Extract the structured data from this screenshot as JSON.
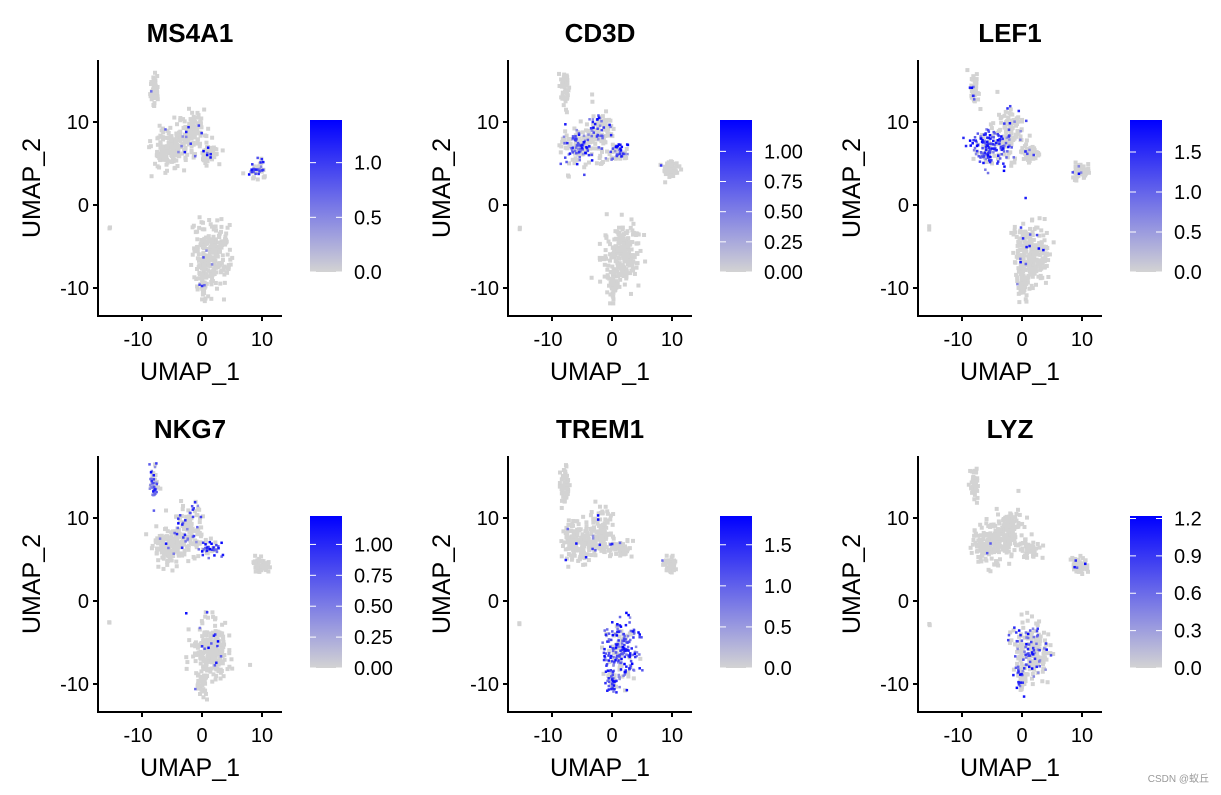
{
  "watermark": "CSDN @蚁丘",
  "chart_data": {
    "type": "scatter",
    "xlabel": "UMAP_1",
    "ylabel": "UMAP_2",
    "xlim": [
      -16.5,
      13.5
    ],
    "ylim": [
      -13.5,
      17.5
    ],
    "xticks": [
      -10,
      0,
      10
    ],
    "yticks": [
      -10,
      0,
      10
    ],
    "low_color": "#D3D3D3",
    "high_color": "#0000FF",
    "clusters": [
      {
        "x": -8,
        "y": 14,
        "sx": 0.35,
        "sy": 1.1,
        "n": 50
      },
      {
        "x": -5.5,
        "y": 7,
        "sx": 1.4,
        "sy": 1.2,
        "n": 160
      },
      {
        "x": -2,
        "y": 8.7,
        "sx": 1.1,
        "sy": 1.4,
        "n": 110
      },
      {
        "x": 1.2,
        "y": 6.3,
        "sx": 0.9,
        "sy": 0.5,
        "n": 50
      },
      {
        "x": 9.6,
        "y": 4.3,
        "sx": 0.7,
        "sy": 0.5,
        "n": 50
      },
      {
        "x": 1.5,
        "y": -6,
        "sx": 1.5,
        "sy": 1.8,
        "n": 230
      },
      {
        "x": 0,
        "y": -9.5,
        "sx": 0.45,
        "sy": 0.9,
        "n": 40
      },
      {
        "x": -15.5,
        "y": -2.7,
        "sx": 0.05,
        "sy": 0.1,
        "n": 2
      }
    ],
    "panels": [
      {
        "title": "MS4A1",
        "max": 1.39,
        "legend_ticks": [
          "0.0",
          "0.5",
          "1.0"
        ],
        "tick_values": [
          0,
          0.5,
          1.0
        ],
        "expr_fraction": [
          0.05,
          0.02,
          0.05,
          0.05,
          0.6,
          0.02,
          0.02,
          0
        ]
      },
      {
        "title": "CD3D",
        "max": 1.26,
        "legend_ticks": [
          "0.00",
          "0.25",
          "0.50",
          "0.75",
          "1.00"
        ],
        "tick_values": [
          0,
          0.25,
          0.5,
          0.75,
          1.0
        ],
        "expr_fraction": [
          0.05,
          0.45,
          0.3,
          0.5,
          0.05,
          0.01,
          0.01,
          0
        ]
      },
      {
        "title": "LEF1",
        "max": 1.9,
        "legend_ticks": [
          "0.0",
          "0.5",
          "1.0",
          "1.5"
        ],
        "tick_values": [
          0,
          0.5,
          1.0,
          1.5
        ],
        "expr_fraction": [
          0.1,
          0.8,
          0.15,
          0.1,
          0.1,
          0.05,
          0.05,
          0
        ]
      },
      {
        "title": "NKG7",
        "max": 1.23,
        "legend_ticks": [
          "0.00",
          "0.25",
          "0.50",
          "0.75",
          "1.00"
        ],
        "tick_values": [
          0,
          0.25,
          0.5,
          0.75,
          1.0
        ],
        "expr_fraction": [
          0.6,
          0.05,
          0.2,
          0.6,
          0.02,
          0.04,
          0.02,
          0
        ]
      },
      {
        "title": "TREM1",
        "max": 1.85,
        "legend_ticks": [
          "0.0",
          "0.5",
          "1.0",
          "1.5"
        ],
        "tick_values": [
          0,
          0.5,
          1.0,
          1.5
        ],
        "expr_fraction": [
          0.05,
          0.04,
          0.06,
          0.04,
          0.02,
          0.75,
          0.6,
          0
        ]
      },
      {
        "title": "LYZ",
        "max": 1.22,
        "legend_ticks": [
          "0.0",
          "0.3",
          "0.6",
          "0.9",
          "1.2"
        ],
        "tick_values": [
          0,
          0.3,
          0.6,
          0.9,
          1.2
        ],
        "expr_fraction": [
          0,
          0.01,
          0.01,
          0,
          0.05,
          0.3,
          0.2,
          0
        ]
      }
    ]
  }
}
